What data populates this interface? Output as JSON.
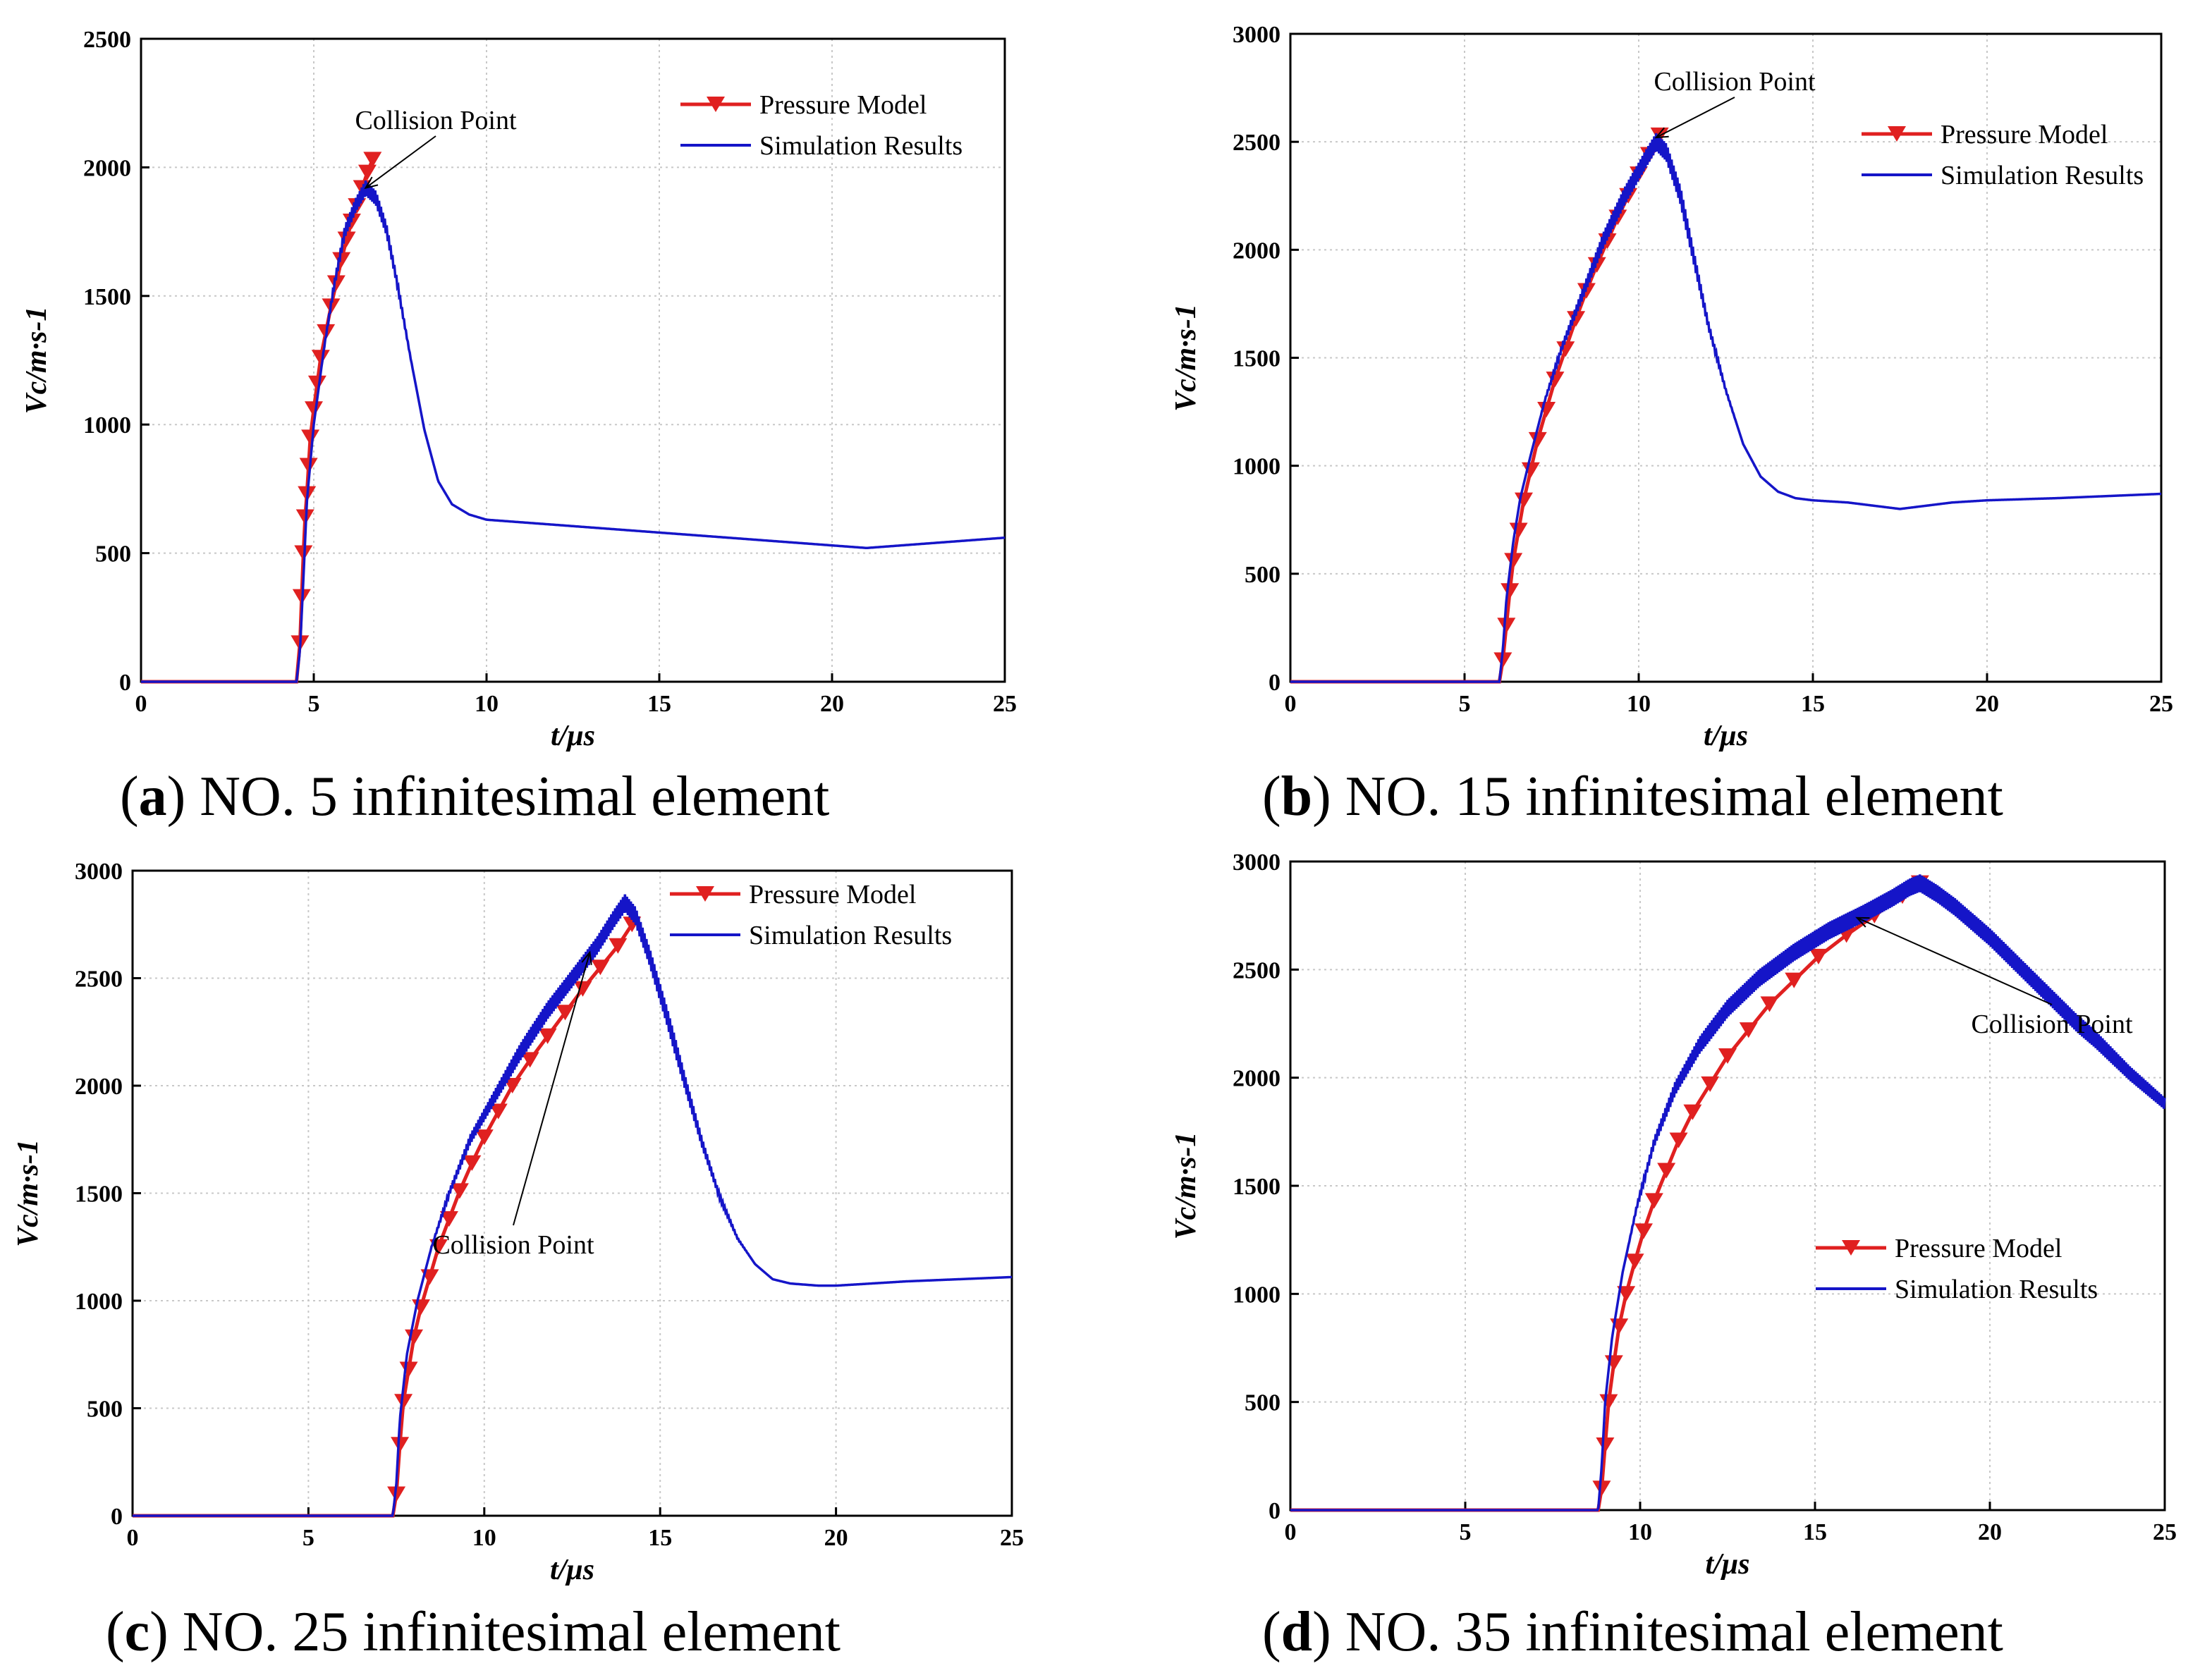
{
  "colors": {
    "pressure": "#e02020",
    "simulation": "#1515c8",
    "grid": "#c8c8c8",
    "axis": "#000000"
  },
  "chart_data": [
    {
      "id": "a",
      "type": "line",
      "caption_label": "a",
      "caption_text": "NO. 5 infinitesimal element",
      "xlabel": "t/μs",
      "ylabel": "Vc/m·s-1",
      "xlim": [
        0,
        25
      ],
      "ylim": [
        0,
        2500
      ],
      "xticks": [
        "0",
        "5",
        "10",
        "15",
        "20",
        "25"
      ],
      "yticks": [
        "0",
        "500",
        "1000",
        "1500",
        "2000",
        "2500"
      ],
      "grid": true,
      "legend_position": "top-right",
      "annotation": "Collision Point",
      "annotation_target": [
        6.5,
        1920
      ],
      "series": [
        {
          "name": "Pressure Model",
          "marker": "down-triangle",
          "x": [
            0,
            4.5,
            4.6,
            4.65,
            4.7,
            4.75,
            4.8,
            4.85,
            4.9,
            5.0,
            5.1,
            5.2,
            5.35,
            5.5,
            5.65,
            5.8,
            5.95,
            6.1,
            6.25,
            6.4,
            6.55,
            6.7
          ],
          "y": [
            0,
            0,
            150,
            330,
            500,
            640,
            730,
            840,
            950,
            1060,
            1160,
            1260,
            1360,
            1460,
            1550,
            1640,
            1720,
            1790,
            1850,
            1920,
            1980,
            2030
          ]
        },
        {
          "name": "Simulation Results",
          "x": [
            0,
            4.5,
            4.6,
            4.7,
            4.8,
            5.0,
            5.3,
            5.6,
            5.9,
            6.2,
            6.5,
            6.8,
            7.1,
            7.4,
            7.8,
            8.2,
            8.6,
            9.0,
            9.5,
            10,
            12,
            14,
            16,
            18,
            20,
            21,
            22,
            23,
            24,
            25
          ],
          "y": [
            0,
            0,
            120,
            400,
            700,
            1000,
            1300,
            1550,
            1750,
            1850,
            1920,
            1880,
            1760,
            1560,
            1260,
            980,
            780,
            690,
            650,
            630,
            610,
            590,
            570,
            550,
            530,
            520,
            530,
            540,
            550,
            560
          ]
        }
      ]
    },
    {
      "id": "b",
      "type": "line",
      "caption_label": "b",
      "caption_text": "NO. 15 infinitesimal element",
      "xlabel": "t/μs",
      "ylabel": "Vc/m·s-1",
      "xlim": [
        0,
        25
      ],
      "ylim": [
        0,
        3000
      ],
      "xticks": [
        "0",
        "5",
        "10",
        "15",
        "20",
        "25"
      ],
      "yticks": [
        "0",
        "500",
        "1000",
        "1500",
        "2000",
        "2500",
        "3000"
      ],
      "grid": true,
      "legend_position": "top-right",
      "annotation": "Collision Point",
      "annotation_target": [
        10.5,
        2520
      ],
      "series": [
        {
          "name": "Pressure Model",
          "marker": "down-triangle",
          "x": [
            0,
            6.0,
            6.1,
            6.2,
            6.3,
            6.4,
            6.55,
            6.7,
            6.9,
            7.1,
            7.35,
            7.6,
            7.9,
            8.2,
            8.5,
            8.8,
            9.1,
            9.4,
            9.7,
            10.0,
            10.3,
            10.6
          ],
          "y": [
            0,
            0,
            100,
            260,
            420,
            560,
            700,
            840,
            980,
            1120,
            1260,
            1400,
            1540,
            1680,
            1810,
            1930,
            2040,
            2150,
            2250,
            2350,
            2440,
            2530
          ]
        },
        {
          "name": "Simulation Results",
          "x": [
            0,
            6.0,
            6.1,
            6.2,
            6.4,
            6.6,
            6.9,
            7.3,
            7.8,
            8.4,
            9.0,
            9.6,
            10.2,
            10.5,
            10.8,
            11.2,
            11.6,
            12.0,
            12.5,
            13.0,
            13.5,
            14.0,
            14.5,
            15,
            16,
            17,
            17.5,
            18,
            19,
            20,
            22,
            25
          ],
          "y": [
            0,
            0,
            150,
            380,
            650,
            850,
            1050,
            1300,
            1550,
            1800,
            2050,
            2250,
            2420,
            2500,
            2450,
            2250,
            1950,
            1650,
            1350,
            1100,
            950,
            880,
            850,
            840,
            830,
            810,
            800,
            810,
            830,
            840,
            850,
            870
          ]
        }
      ]
    },
    {
      "id": "c",
      "type": "line",
      "caption_label": "c",
      "caption_text": "NO. 25 infinitesimal element",
      "xlabel": "t/μs",
      "ylabel": "Vc/m·s-1",
      "xlim": [
        0,
        25
      ],
      "ylim": [
        0,
        3000
      ],
      "xticks": [
        "0",
        "5",
        "10",
        "15",
        "20",
        "25"
      ],
      "yticks": [
        "0",
        "500",
        "1000",
        "1500",
        "2000",
        "2500",
        "3000"
      ],
      "grid": true,
      "legend_position": "top-right",
      "annotation": "Collision Point",
      "annotation_target": [
        13.0,
        2620
      ],
      "series": [
        {
          "name": "Pressure Model",
          "marker": "down-triangle",
          "x": [
            0,
            7.4,
            7.5,
            7.6,
            7.7,
            7.85,
            8.0,
            8.2,
            8.45,
            8.7,
            9.0,
            9.3,
            9.65,
            10.0,
            10.4,
            10.8,
            11.3,
            11.8,
            12.3,
            12.8,
            13.3,
            13.8,
            14.2
          ],
          "y": [
            0,
            0,
            100,
            330,
            530,
            680,
            830,
            970,
            1110,
            1250,
            1380,
            1510,
            1640,
            1760,
            1880,
            2000,
            2120,
            2230,
            2340,
            2450,
            2550,
            2650,
            2750
          ]
        },
        {
          "name": "Simulation Results",
          "x": [
            0,
            7.4,
            7.5,
            7.6,
            7.8,
            8.1,
            8.5,
            9.0,
            9.6,
            10.3,
            11.0,
            11.8,
            12.6,
            13.2,
            13.7,
            14.0,
            14.3,
            14.7,
            15.2,
            15.7,
            16.2,
            16.7,
            17.2,
            17.7,
            18.2,
            18.7,
            19.5,
            20,
            22,
            25
          ],
          "y": [
            0,
            0,
            150,
            450,
            750,
            1000,
            1250,
            1500,
            1750,
            1950,
            2150,
            2350,
            2520,
            2650,
            2780,
            2850,
            2790,
            2600,
            2320,
            2020,
            1730,
            1480,
            1290,
            1170,
            1100,
            1080,
            1070,
            1070,
            1090,
            1110
          ]
        }
      ]
    },
    {
      "id": "d",
      "type": "line",
      "caption_label": "d",
      "caption_text": "NO. 35 infinitesimal element",
      "xlabel": "t/μs",
      "ylabel": "Vc/m·s-1",
      "xlim": [
        0,
        25
      ],
      "ylim": [
        0,
        3000
      ],
      "xticks": [
        "0",
        "5",
        "10",
        "15",
        "20",
        "25"
      ],
      "yticks": [
        "0",
        "500",
        "1000",
        "1500",
        "2000",
        "2500",
        "3000"
      ],
      "grid": true,
      "legend_position": "bottom-right",
      "annotation": "Collision Point",
      "annotation_target": [
        16.2,
        2740
      ],
      "series": [
        {
          "name": "Pressure Model",
          "marker": "down-triangle",
          "x": [
            0,
            8.8,
            8.9,
            9.0,
            9.1,
            9.25,
            9.4,
            9.6,
            9.85,
            10.1,
            10.4,
            10.75,
            11.1,
            11.5,
            12.0,
            12.5,
            13.1,
            13.7,
            14.4,
            15.1,
            15.9,
            16.7,
            17.5,
            18.0
          ],
          "y": [
            0,
            0,
            100,
            300,
            500,
            680,
            850,
            1000,
            1150,
            1290,
            1430,
            1570,
            1710,
            1840,
            1970,
            2100,
            2220,
            2340,
            2450,
            2560,
            2660,
            2750,
            2840,
            2900
          ]
        },
        {
          "name": "Simulation Results",
          "x": [
            0,
            8.8,
            8.9,
            9.0,
            9.2,
            9.5,
            9.9,
            10.4,
            11.0,
            11.7,
            12.5,
            13.4,
            14.4,
            15.4,
            16.4,
            17.2,
            17.7,
            18.0,
            18.5,
            19.0,
            19.5,
            20.0,
            20.5,
            21.0,
            21.5,
            22.0,
            22.5,
            23.0,
            23.5,
            24.0,
            24.5,
            25
          ],
          "y": [
            0,
            0,
            200,
            500,
            800,
            1100,
            1400,
            1700,
            1950,
            2150,
            2320,
            2460,
            2580,
            2680,
            2760,
            2830,
            2880,
            2900,
            2850,
            2790,
            2720,
            2650,
            2570,
            2490,
            2410,
            2330,
            2250,
            2180,
            2100,
            2020,
            1950,
            1880
          ]
        }
      ]
    }
  ]
}
